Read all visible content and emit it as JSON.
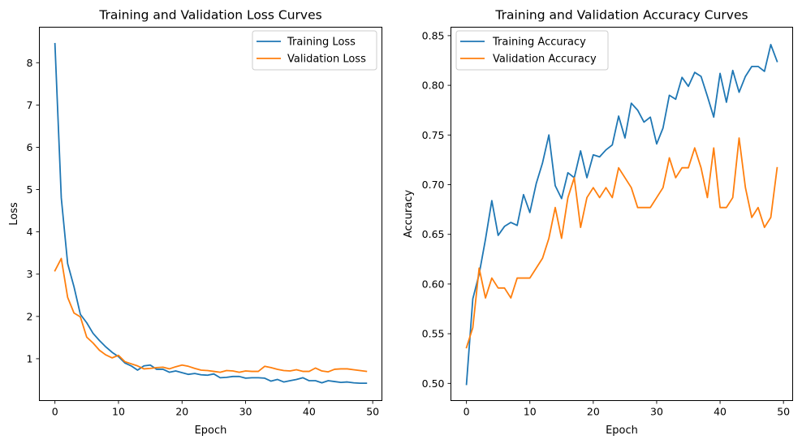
{
  "chart_data": [
    {
      "type": "line",
      "title": "Training and Validation Loss Curves",
      "xlabel": "Epoch",
      "ylabel": "Loss",
      "xlim": [
        -2.45,
        51.45
      ],
      "ylim": [
        0.01,
        8.84
      ],
      "xticks": [
        0,
        10,
        20,
        30,
        40,
        50
      ],
      "yticks": [
        1,
        2,
        3,
        4,
        5,
        6,
        7,
        8
      ],
      "legend_position": "upper right",
      "grid": false,
      "x": [
        0,
        1,
        2,
        3,
        4,
        5,
        6,
        7,
        8,
        9,
        10,
        11,
        12,
        13,
        14,
        15,
        16,
        17,
        18,
        19,
        20,
        21,
        22,
        23,
        24,
        25,
        26,
        27,
        28,
        29,
        30,
        31,
        32,
        33,
        34,
        35,
        36,
        37,
        38,
        39,
        40,
        41,
        42,
        43,
        44,
        45,
        46,
        47,
        48,
        49
      ],
      "series": [
        {
          "name": "Training Loss",
          "color": "#1f77b4",
          "values": [
            8.45,
            4.8,
            3.25,
            2.7,
            2.05,
            1.85,
            1.6,
            1.43,
            1.28,
            1.15,
            1.05,
            0.9,
            0.83,
            0.73,
            0.83,
            0.85,
            0.75,
            0.75,
            0.68,
            0.71,
            0.67,
            0.63,
            0.65,
            0.62,
            0.61,
            0.64,
            0.55,
            0.56,
            0.58,
            0.58,
            0.54,
            0.55,
            0.55,
            0.54,
            0.47,
            0.51,
            0.45,
            0.48,
            0.51,
            0.55,
            0.48,
            0.48,
            0.43,
            0.48,
            0.46,
            0.44,
            0.45,
            0.43,
            0.42,
            0.42
          ]
        },
        {
          "name": "Validation Loss",
          "color": "#ff7f0e",
          "values": [
            3.08,
            3.37,
            2.45,
            2.08,
            1.99,
            1.51,
            1.37,
            1.2,
            1.09,
            1.02,
            1.08,
            0.93,
            0.88,
            0.83,
            0.76,
            0.77,
            0.79,
            0.8,
            0.76,
            0.81,
            0.85,
            0.82,
            0.77,
            0.73,
            0.72,
            0.7,
            0.68,
            0.72,
            0.71,
            0.68,
            0.71,
            0.7,
            0.7,
            0.82,
            0.79,
            0.75,
            0.72,
            0.71,
            0.74,
            0.7,
            0.7,
            0.78,
            0.71,
            0.69,
            0.75,
            0.76,
            0.76,
            0.74,
            0.72,
            0.7
          ]
        }
      ]
    },
    {
      "type": "line",
      "title": "Training and Validation Accuracy Curves",
      "xlabel": "Epoch",
      "ylabel": "Accuracy",
      "xlim": [
        -2.45,
        51.45
      ],
      "ylim": [
        0.4827,
        0.8585
      ],
      "xticks": [
        0,
        10,
        20,
        30,
        40,
        50
      ],
      "yticks": [
        0.5,
        0.55,
        0.6,
        0.65,
        0.7,
        0.75,
        0.8,
        0.85
      ],
      "ytick_labels": [
        "0.50",
        "0.55",
        "0.60",
        "0.65",
        "0.70",
        "0.75",
        "0.80",
        "0.85"
      ],
      "legend_position": "upper left",
      "grid": false,
      "x": [
        0,
        1,
        2,
        3,
        4,
        5,
        6,
        7,
        8,
        9,
        10,
        11,
        12,
        13,
        14,
        15,
        16,
        17,
        18,
        19,
        20,
        21,
        22,
        23,
        24,
        25,
        26,
        27,
        28,
        29,
        30,
        31,
        32,
        33,
        34,
        35,
        36,
        37,
        38,
        39,
        40,
        41,
        42,
        43,
        44,
        45,
        46,
        47,
        48,
        49
      ],
      "series": [
        {
          "name": "Training Accuracy",
          "color": "#1f77b4",
          "values": [
            0.499,
            0.585,
            0.61,
            0.645,
            0.684,
            0.649,
            0.658,
            0.662,
            0.659,
            0.69,
            0.672,
            0.701,
            0.722,
            0.75,
            0.699,
            0.686,
            0.712,
            0.707,
            0.734,
            0.707,
            0.73,
            0.728,
            0.735,
            0.74,
            0.769,
            0.747,
            0.782,
            0.775,
            0.763,
            0.768,
            0.741,
            0.757,
            0.79,
            0.786,
            0.808,
            0.799,
            0.813,
            0.809,
            0.789,
            0.768,
            0.812,
            0.783,
            0.815,
            0.793,
            0.809,
            0.819,
            0.819,
            0.814,
            0.841,
            0.824
          ]
        },
        {
          "name": "Validation Accuracy",
          "color": "#ff7f0e",
          "values": [
            0.536,
            0.556,
            0.616,
            0.586,
            0.606,
            0.596,
            0.596,
            0.586,
            0.606,
            0.606,
            0.606,
            0.616,
            0.626,
            0.646,
            0.677,
            0.646,
            0.687,
            0.707,
            0.657,
            0.687,
            0.697,
            0.687,
            0.697,
            0.687,
            0.717,
            0.707,
            0.697,
            0.677,
            0.677,
            0.677,
            0.687,
            0.697,
            0.727,
            0.707,
            0.717,
            0.717,
            0.737,
            0.717,
            0.687,
            0.737,
            0.677,
            0.677,
            0.687,
            0.747,
            0.697,
            0.667,
            0.677,
            0.657,
            0.667,
            0.717
          ]
        }
      ]
    }
  ]
}
